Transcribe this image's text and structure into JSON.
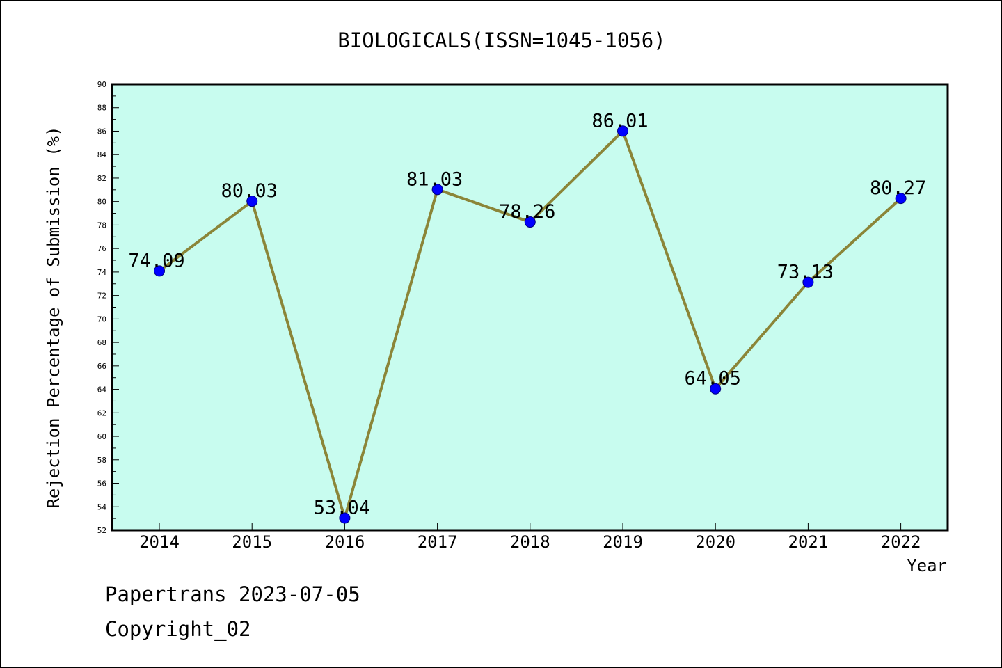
{
  "chart_data": {
    "type": "line",
    "title": "BIOLOGICALS(ISSN=1045-1056)",
    "xlabel": "Year",
    "ylabel": "Rejection Percentage of Submission (%)",
    "categories": [
      "2014",
      "2015",
      "2016",
      "2017",
      "2018",
      "2019",
      "2020",
      "2021",
      "2022"
    ],
    "values": [
      74.09,
      80.03,
      53.04,
      81.03,
      78.26,
      86.01,
      64.05,
      73.13,
      80.27
    ],
    "data_labels": [
      "74.09",
      "80.03",
      "53.04",
      "81.03",
      "78.26",
      "86.01",
      "64.05",
      "73.13",
      "80.27"
    ],
    "ylim": [
      52,
      90
    ],
    "yticks": [
      "52",
      "54",
      "56",
      "58",
      "60",
      "62",
      "64",
      "66",
      "68",
      "70",
      "72",
      "74",
      "76",
      "78",
      "80",
      "82",
      "84",
      "86",
      "88",
      "90"
    ],
    "grid": false,
    "colors": {
      "plot_background": "#c8fcef",
      "line": "#8b8538",
      "marker": "#0000ff",
      "axes": "#000000"
    }
  },
  "footer": {
    "line1": "Papertrans 2023-07-05",
    "line2": "Copyright_02"
  }
}
